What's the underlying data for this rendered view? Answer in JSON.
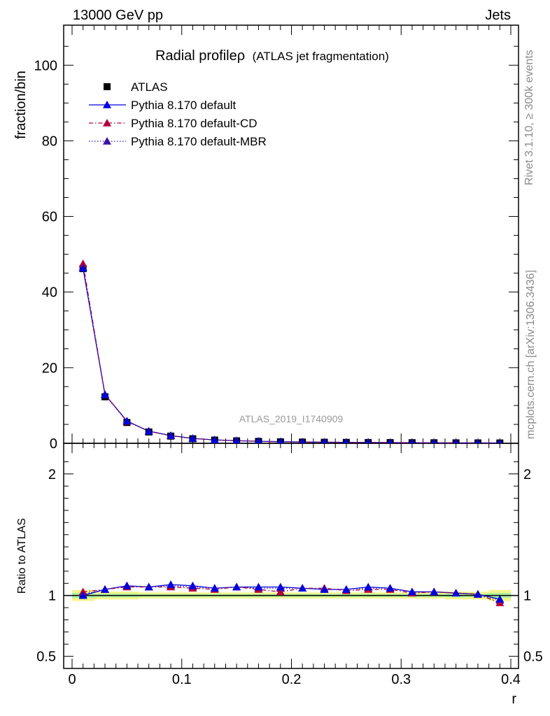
{
  "header": {
    "left": "13000 GeV pp",
    "right": "Jets"
  },
  "side_labels": {
    "rivet": "Rivet 3.1.10, ≥ 300k events",
    "mcplots": "mcplots.cern.ch [arXiv:1306.3436]"
  },
  "watermark": "ATLAS_2019_I1740909",
  "chart_data": {
    "type": "scatter",
    "title": "Radial profileρ",
    "subtitle": "(ATLAS jet fragmentation)",
    "ylabel": "fraction/bin",
    "ratio_ylabel": "Ratio to ATLAS",
    "xlabel": "r",
    "xlim": [
      0,
      0.4
    ],
    "ylim": [
      0,
      108
    ],
    "ratio_ylim": [
      0.4,
      2.2
    ],
    "x_ticks": [
      "0",
      "0.1",
      "0.2",
      "0.3",
      "0.4"
    ],
    "y_ticks": [
      "0",
      "20",
      "40",
      "60",
      "80",
      "100"
    ],
    "ratio_ticks": [
      "0.5",
      "1",
      "2"
    ],
    "x": [
      0.01,
      0.03,
      0.05,
      0.07,
      0.09,
      0.11,
      0.13,
      0.15,
      0.17,
      0.19,
      0.21,
      0.23,
      0.25,
      0.27,
      0.29,
      0.31,
      0.33,
      0.35,
      0.37,
      0.39
    ],
    "series": [
      {
        "name": "ATLAS",
        "color": "#000000",
        "marker": "square",
        "values": [
          46.2,
          12.3,
          5.5,
          3.0,
          1.9,
          1.2,
          0.85,
          0.65,
          0.5,
          0.4,
          0.33,
          0.28,
          0.24,
          0.21,
          0.18,
          0.16,
          0.14,
          0.12,
          0.1,
          0.08
        ],
        "ratio": [
          1.0,
          1.0,
          1.0,
          1.0,
          1.0,
          1.0,
          1.0,
          1.0,
          1.0,
          1.0,
          1.0,
          1.0,
          1.0,
          1.0,
          1.0,
          1.0,
          1.0,
          1.0,
          1.0,
          1.0
        ]
      },
      {
        "name": "Pythia 8.170 default",
        "color": "#0000dd",
        "marker": "triangle",
        "line": "solid",
        "values": [
          46.3,
          12.9,
          5.9,
          3.2,
          2.05,
          1.29,
          0.9,
          0.69,
          0.53,
          0.43,
          0.35,
          0.29,
          0.25,
          0.22,
          0.19,
          0.165,
          0.145,
          0.122,
          0.101,
          0.078
        ],
        "ratio": [
          1.0,
          1.05,
          1.08,
          1.07,
          1.09,
          1.08,
          1.06,
          1.07,
          1.07,
          1.07,
          1.06,
          1.05,
          1.05,
          1.07,
          1.06,
          1.03,
          1.03,
          1.02,
          1.01,
          0.97
        ]
      },
      {
        "name": "Pythia 8.170 default-CD",
        "color": "#b0003a",
        "marker": "triangle",
        "line": "dashdot",
        "values": [
          47.5,
          12.9,
          5.8,
          3.2,
          2.0,
          1.27,
          0.9,
          0.69,
          0.52,
          0.41,
          0.35,
          0.29,
          0.25,
          0.22,
          0.19,
          0.163,
          0.144,
          0.121,
          0.1,
          0.075
        ],
        "ratio": [
          1.03,
          1.05,
          1.07,
          1.07,
          1.07,
          1.06,
          1.05,
          1.07,
          1.05,
          1.03,
          1.06,
          1.06,
          1.04,
          1.05,
          1.05,
          1.02,
          1.03,
          1.02,
          1.01,
          0.94
        ]
      },
      {
        "name": "Pythia 8.170 default-MBR",
        "color": "#3a10a8",
        "marker": "triangle",
        "line": "dotted",
        "values": [
          46.6,
          12.8,
          5.8,
          3.2,
          2.04,
          1.28,
          0.9,
          0.69,
          0.53,
          0.42,
          0.35,
          0.29,
          0.25,
          0.22,
          0.19,
          0.164,
          0.145,
          0.122,
          0.1,
          0.077
        ],
        "ratio": [
          1.01,
          1.05,
          1.08,
          1.07,
          1.08,
          1.07,
          1.06,
          1.07,
          1.06,
          1.06,
          1.06,
          1.05,
          1.05,
          1.06,
          1.06,
          1.03,
          1.03,
          1.02,
          1.01,
          0.96
        ]
      }
    ]
  }
}
